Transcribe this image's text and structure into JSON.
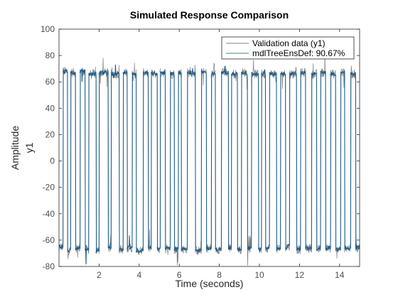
{
  "figure": {
    "title": "Simulated Response Comparison",
    "xlabel": "Time (seconds)",
    "ylabel_outer": "Amplitude",
    "ylabel_inner": "y1"
  },
  "colors": {
    "validation": "#808080",
    "model": "#1f5f8b",
    "axes": "#262626",
    "legend_model_line": "#3d8a6a"
  },
  "chart_data": {
    "type": "line",
    "title": "Simulated Response Comparison",
    "xlabel": "Time (seconds)",
    "ylabel": "Amplitude",
    "xlim": [
      0,
      15
    ],
    "ylim": [
      -80,
      100
    ],
    "xticks": [
      2,
      4,
      6,
      8,
      10,
      12,
      14
    ],
    "yticks": [
      -80,
      -60,
      -40,
      -20,
      0,
      20,
      40,
      60,
      80,
      100
    ],
    "grid": false,
    "legend_position": "top-right",
    "series": [
      {
        "name": "Validation data (y1)",
        "color": "#808080"
      },
      {
        "name": "mdlTreeEnsDef: 90.67%",
        "color": "#1f5f8b"
      }
    ],
    "levels": [
      [
        0.0,
        0.2,
        -65
      ],
      [
        0.2,
        0.42,
        68
      ],
      [
        0.42,
        0.58,
        -68
      ],
      [
        0.58,
        0.82,
        67
      ],
      [
        0.82,
        1.05,
        -66
      ],
      [
        1.05,
        1.3,
        68
      ],
      [
        1.3,
        1.48,
        -67
      ],
      [
        1.48,
        1.85,
        66
      ],
      [
        1.85,
        2.0,
        -68
      ],
      [
        2.0,
        2.45,
        67
      ],
      [
        2.45,
        2.6,
        -66
      ],
      [
        2.6,
        3.0,
        66
      ],
      [
        3.0,
        3.2,
        -67
      ],
      [
        3.2,
        3.4,
        67
      ],
      [
        3.4,
        3.65,
        -66
      ],
      [
        3.65,
        3.85,
        66
      ],
      [
        3.85,
        4.2,
        -68
      ],
      [
        4.2,
        4.45,
        67
      ],
      [
        4.45,
        4.6,
        -66
      ],
      [
        4.6,
        4.9,
        66
      ],
      [
        4.9,
        5.05,
        -67
      ],
      [
        5.05,
        5.3,
        67
      ],
      [
        5.3,
        5.55,
        -66
      ],
      [
        5.55,
        5.75,
        66
      ],
      [
        5.75,
        5.95,
        -67
      ],
      [
        5.95,
        6.1,
        67
      ],
      [
        6.1,
        6.4,
        -67
      ],
      [
        6.4,
        6.8,
        67
      ],
      [
        6.8,
        7.1,
        -68
      ],
      [
        7.1,
        7.35,
        67
      ],
      [
        7.35,
        7.6,
        -66
      ],
      [
        7.6,
        7.8,
        66
      ],
      [
        7.8,
        8.1,
        -67
      ],
      [
        8.1,
        8.45,
        67
      ],
      [
        8.45,
        8.6,
        -66
      ],
      [
        8.6,
        8.9,
        66
      ],
      [
        8.9,
        9.1,
        -67
      ],
      [
        9.1,
        9.4,
        67
      ],
      [
        9.4,
        9.6,
        -66
      ],
      [
        9.6,
        9.95,
        66
      ],
      [
        9.95,
        10.1,
        -67
      ],
      [
        10.1,
        10.3,
        66
      ],
      [
        10.3,
        10.5,
        -66
      ],
      [
        10.5,
        10.85,
        66
      ],
      [
        10.85,
        11.05,
        -67
      ],
      [
        11.05,
        11.3,
        66
      ],
      [
        11.3,
        11.5,
        -65
      ],
      [
        11.5,
        11.85,
        66
      ],
      [
        11.85,
        12.05,
        -67
      ],
      [
        12.05,
        12.3,
        67
      ],
      [
        12.3,
        12.6,
        -66
      ],
      [
        12.6,
        12.85,
        66
      ],
      [
        12.85,
        13.05,
        -67
      ],
      [
        13.05,
        13.3,
        67
      ],
      [
        13.3,
        13.55,
        -66
      ],
      [
        13.55,
        13.8,
        66
      ],
      [
        13.8,
        14.05,
        -67
      ],
      [
        14.05,
        14.25,
        67
      ],
      [
        14.25,
        14.55,
        -66
      ],
      [
        14.55,
        14.8,
        66
      ],
      [
        14.8,
        15.0,
        -66
      ]
    ]
  }
}
